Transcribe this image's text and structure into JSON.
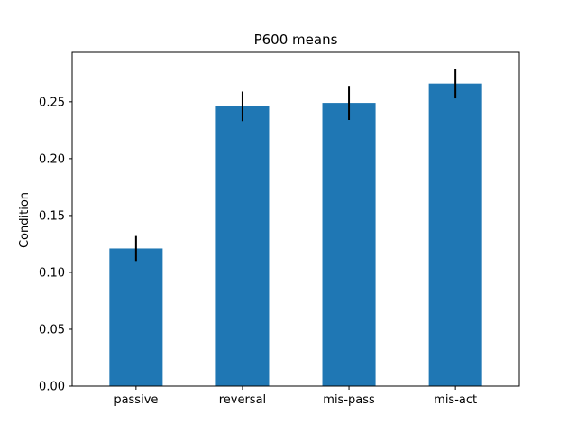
{
  "chart_data": {
    "type": "bar",
    "title": "P600 means",
    "xlabel": "",
    "ylabel": "Condition",
    "categories": [
      "passive",
      "reversal",
      "mis-pass",
      "mis-act"
    ],
    "values": [
      0.121,
      0.246,
      0.249,
      0.266
    ],
    "errors": [
      0.011,
      0.013,
      0.015,
      0.013
    ],
    "ylim": [
      0,
      0.2935
    ],
    "yticks": [
      0.0,
      0.05,
      0.1,
      0.15,
      0.2,
      0.25
    ],
    "ytick_labels": [
      "0.00",
      "0.05",
      "0.10",
      "0.15",
      "0.20",
      "0.25"
    ],
    "grid": false,
    "bar_color": "#1f77b4",
    "error_color": "#000000"
  }
}
